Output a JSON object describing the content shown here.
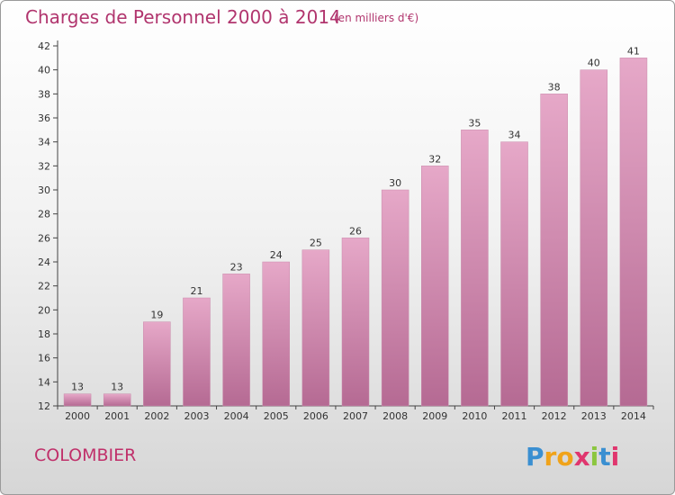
{
  "chart_data": {
    "type": "bar",
    "title": "Charges de Personnel 2000 à 2014",
    "subtitle": "(en milliers d'€)",
    "categories": [
      "2000",
      "2001",
      "2002",
      "2003",
      "2004",
      "2005",
      "2006",
      "2007",
      "2008",
      "2009",
      "2010",
      "2011",
      "2012",
      "2013",
      "2014"
    ],
    "values": [
      13,
      13,
      19,
      21,
      23,
      24,
      25,
      26,
      30,
      32,
      35,
      34,
      38,
      40,
      41
    ],
    "ylim": [
      12,
      42
    ],
    "yticks": [
      12,
      14,
      16,
      18,
      20,
      22,
      24,
      26,
      28,
      30,
      32,
      34,
      36,
      38,
      40,
      42
    ],
    "grid": false,
    "bar_color": "#d990b6"
  },
  "commune": "COLOMBIER",
  "logo": {
    "text": "Proxiti",
    "letter_colors": [
      "#3a8fd1",
      "#f0a31a",
      "#f0a31a",
      "#e0366e",
      "#8bc63f",
      "#3a8fd1",
      "#e0366e"
    ]
  },
  "colors": {
    "title": "#b1356e",
    "axis": "#444444"
  }
}
